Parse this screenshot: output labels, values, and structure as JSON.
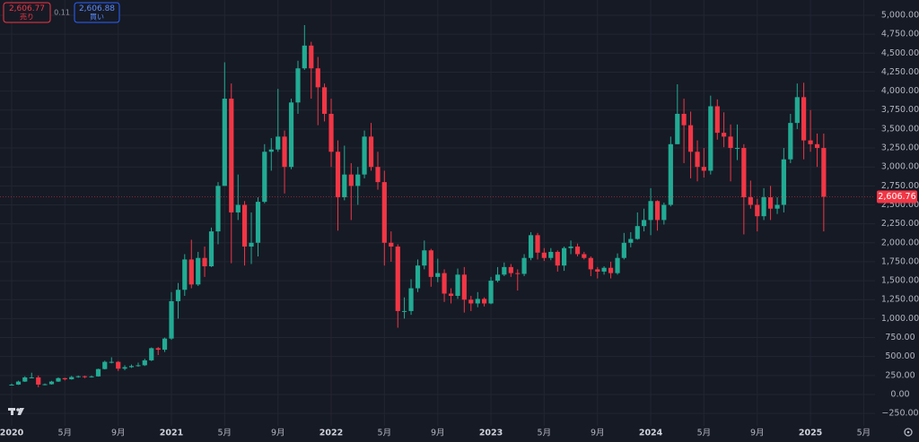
{
  "trade_panel": {
    "sell_price": "2,606.77",
    "sell_label": "売り",
    "spread": "0.11",
    "buy_price": "2,606.88",
    "buy_label": "買い"
  },
  "chart_data": {
    "type": "candlestick",
    "up_color": "#22ab94",
    "down_color": "#f23645",
    "grid": true,
    "last_price": {
      "value": 2606.76,
      "label": "2,606.76"
    },
    "xlim": [
      2019.927,
      2025.404
    ],
    "xticks": [
      2020,
      {
        "value": 2020.333,
        "label": "5月"
      },
      {
        "value": 2020.667,
        "label": "9月"
      },
      2021,
      {
        "value": 2021.333,
        "label": "5月"
      },
      {
        "value": 2021.667,
        "label": "9月"
      },
      2022,
      {
        "value": 2022.333,
        "label": "5月"
      },
      {
        "value": 2022.667,
        "label": "9月"
      },
      2023,
      {
        "value": 2023.333,
        "label": "5月"
      },
      {
        "value": 2023.667,
        "label": "9月"
      },
      2024,
      {
        "value": 2024.333,
        "label": "5月"
      },
      {
        "value": 2024.667,
        "label": "9月"
      },
      2025,
      {
        "value": 2025.333,
        "label": "5月"
      }
    ],
    "ylim": [
      -414,
      5201
    ],
    "yticks": [
      {
        "value": -250,
        "label": "−250.00"
      },
      {
        "value": 0,
        "label": "0.00"
      },
      {
        "value": 250,
        "label": "250.00"
      },
      {
        "value": 500,
        "label": "500.00"
      },
      {
        "value": 750,
        "label": "750.00"
      },
      {
        "value": 1000,
        "label": "1,000.00"
      },
      {
        "value": 1250,
        "label": "1,250.00"
      },
      {
        "value": 1500,
        "label": "1,500.00"
      },
      {
        "value": 1750,
        "label": "1,750.00"
      },
      {
        "value": 2000,
        "label": "2,000.00"
      },
      {
        "value": 2250,
        "label": "2,250.00"
      },
      {
        "value": 2500,
        "label": "2,500.00"
      },
      {
        "value": 2750,
        "label": "2,750.00"
      },
      {
        "value": 3000,
        "label": "3,000.00"
      },
      {
        "value": 3250,
        "label": "3,250.00"
      },
      {
        "value": 3500,
        "label": "3,500.00"
      },
      {
        "value": 3750,
        "label": "3,750.00"
      },
      {
        "value": 4000,
        "label": "4,000.00"
      },
      {
        "value": 4250,
        "label": "4,250.00"
      },
      {
        "value": 4500,
        "label": "4,500.00"
      },
      {
        "value": 4750,
        "label": "4,750.00"
      },
      {
        "value": 5000,
        "label": "5,000.00"
      }
    ],
    "x": [
      2020,
      2020.042,
      2020.083,
      2020.125,
      2020.167,
      2020.208,
      2020.25,
      2020.292,
      2020.333,
      2020.375,
      2020.417,
      2020.458,
      2020.5,
      2020.542,
      2020.583,
      2020.625,
      2020.667,
      2020.708,
      2020.75,
      2020.792,
      2020.833,
      2020.875,
      2020.917,
      2020.958,
      2021,
      2021.042,
      2021.083,
      2021.125,
      2021.167,
      2021.208,
      2021.25,
      2021.292,
      2021.333,
      2021.375,
      2021.417,
      2021.458,
      2021.5,
      2021.542,
      2021.583,
      2021.625,
      2021.667,
      2021.708,
      2021.75,
      2021.792,
      2021.833,
      2021.875,
      2021.917,
      2021.958,
      2022,
      2022.042,
      2022.083,
      2022.125,
      2022.167,
      2022.208,
      2022.25,
      2022.292,
      2022.333,
      2022.375,
      2022.417,
      2022.458,
      2022.5,
      2022.542,
      2022.583,
      2022.625,
      2022.667,
      2022.708,
      2022.75,
      2022.792,
      2022.833,
      2022.875,
      2022.917,
      2022.958,
      2023,
      2023.042,
      2023.083,
      2023.125,
      2023.167,
      2023.208,
      2023.25,
      2023.292,
      2023.333,
      2023.375,
      2023.417,
      2023.458,
      2023.5,
      2023.542,
      2023.583,
      2023.625,
      2023.667,
      2023.708,
      2023.75,
      2023.792,
      2023.833,
      2023.875,
      2023.917,
      2023.958,
      2024,
      2024.042,
      2024.083,
      2024.125,
      2024.167,
      2024.208,
      2024.25,
      2024.292,
      2024.333,
      2024.375,
      2024.417,
      2024.458,
      2024.5,
      2024.542,
      2024.583,
      2024.625,
      2024.667,
      2024.708,
      2024.75,
      2024.792,
      2024.833,
      2024.875,
      2024.917,
      2024.958,
      2025,
      2025.042,
      2025.083
    ],
    "ohlc": [
      [
        129,
        145,
        117,
        130
      ],
      [
        130,
        182,
        126,
        170
      ],
      [
        170,
        240,
        165,
        225
      ],
      [
        225,
        287,
        215,
        225
      ],
      [
        225,
        250,
        95,
        130
      ],
      [
        130,
        145,
        120,
        135
      ],
      [
        135,
        180,
        130,
        170
      ],
      [
        170,
        225,
        165,
        215
      ],
      [
        215,
        220,
        185,
        200
      ],
      [
        200,
        245,
        195,
        230
      ],
      [
        230,
        250,
        220,
        240
      ],
      [
        240,
        248,
        215,
        228
      ],
      [
        228,
        250,
        222,
        238
      ],
      [
        238,
        340,
        235,
        335
      ],
      [
        335,
        445,
        330,
        430
      ],
      [
        430,
        490,
        410,
        430
      ],
      [
        430,
        440,
        310,
        340
      ],
      [
        340,
        385,
        320,
        360
      ],
      [
        360,
        395,
        350,
        375
      ],
      [
        375,
        420,
        365,
        385
      ],
      [
        385,
        470,
        375,
        450
      ],
      [
        450,
        620,
        440,
        610
      ],
      [
        610,
        625,
        520,
        590
      ],
      [
        590,
        750,
        560,
        737
      ],
      [
        737,
        1350,
        720,
        1230
      ],
      [
        1230,
        1470,
        1000,
        1380
      ],
      [
        1380,
        1850,
        1300,
        1780
      ],
      [
        1780,
        2040,
        1400,
        1450
      ],
      [
        1450,
        1880,
        1430,
        1800
      ],
      [
        1800,
        1950,
        1550,
        1690
      ],
      [
        1690,
        2200,
        1680,
        2150
      ],
      [
        2150,
        2800,
        1980,
        2750
      ],
      [
        2750,
        4380,
        2750,
        3900
      ],
      [
        3900,
        4100,
        1730,
        2400
      ],
      [
        2400,
        2900,
        2300,
        2500
      ],
      [
        2500,
        2550,
        1700,
        1950
      ],
      [
        1950,
        2400,
        1720,
        2000
      ],
      [
        2000,
        2600,
        1820,
        2540
      ],
      [
        2540,
        3300,
        2520,
        3200
      ],
      [
        3200,
        3380,
        2950,
        3230
      ],
      [
        3230,
        4030,
        3200,
        3400
      ],
      [
        3400,
        3480,
        2650,
        3000
      ],
      [
        3000,
        3900,
        2970,
        3850
      ],
      [
        3850,
        4400,
        3700,
        4300
      ],
      [
        4300,
        4870,
        4280,
        4600
      ],
      [
        4600,
        4650,
        3900,
        4300
      ],
      [
        4300,
        4450,
        3550,
        4050
      ],
      [
        4050,
        4100,
        3600,
        3700
      ],
      [
        3700,
        3900,
        3000,
        3200
      ],
      [
        3200,
        3350,
        2160,
        2600
      ],
      [
        2600,
        3280,
        2560,
        2900
      ],
      [
        2900,
        3050,
        2300,
        2750
      ],
      [
        2750,
        3000,
        2500,
        2900
      ],
      [
        2900,
        3480,
        2850,
        3400
      ],
      [
        3400,
        3580,
        2950,
        3000
      ],
      [
        3000,
        3200,
        2700,
        2800
      ],
      [
        2800,
        2950,
        1700,
        2000
      ],
      [
        2000,
        2150,
        1750,
        1950
      ],
      [
        1950,
        1980,
        880,
        1100
      ],
      [
        1100,
        1280,
        1000,
        1100
      ],
      [
        1100,
        1520,
        1050,
        1400
      ],
      [
        1400,
        1780,
        1350,
        1700
      ],
      [
        1700,
        2030,
        1650,
        1900
      ],
      [
        1900,
        1920,
        1420,
        1550
      ],
      [
        1550,
        1790,
        1480,
        1600
      ],
      [
        1600,
        1650,
        1220,
        1330
      ],
      [
        1330,
        1400,
        1200,
        1300
      ],
      [
        1300,
        1660,
        1260,
        1580
      ],
      [
        1580,
        1680,
        1080,
        1250
      ],
      [
        1250,
        1300,
        1100,
        1200
      ],
      [
        1200,
        1350,
        1150,
        1260
      ],
      [
        1260,
        1280,
        1160,
        1200
      ],
      [
        1200,
        1550,
        1190,
        1500
      ],
      [
        1500,
        1680,
        1480,
        1580
      ],
      [
        1580,
        1740,
        1560,
        1680
      ],
      [
        1680,
        1720,
        1550,
        1600
      ],
      [
        1600,
        1650,
        1370,
        1590
      ],
      [
        1590,
        1850,
        1560,
        1800
      ],
      [
        1800,
        2140,
        1770,
        2100
      ],
      [
        2100,
        2130,
        1780,
        1870
      ],
      [
        1870,
        1930,
        1760,
        1800
      ],
      [
        1800,
        1930,
        1770,
        1880
      ],
      [
        1880,
        1900,
        1620,
        1700
      ],
      [
        1700,
        1950,
        1630,
        1930
      ],
      [
        1930,
        2030,
        1850,
        1950
      ],
      [
        1950,
        1990,
        1820,
        1850
      ],
      [
        1850,
        1880,
        1780,
        1800
      ],
      [
        1800,
        1820,
        1560,
        1650
      ],
      [
        1650,
        1680,
        1530,
        1620
      ],
      [
        1620,
        1690,
        1580,
        1670
      ],
      [
        1670,
        1750,
        1530,
        1600
      ],
      [
        1600,
        1860,
        1580,
        1800
      ],
      [
        1800,
        2130,
        1780,
        2000
      ],
      [
        2000,
        2140,
        1940,
        2050
      ],
      [
        2050,
        2400,
        2040,
        2220
      ],
      [
        2220,
        2450,
        2150,
        2300
      ],
      [
        2300,
        2720,
        2100,
        2550
      ],
      [
        2550,
        2560,
        2160,
        2300
      ],
      [
        2300,
        2530,
        2240,
        2500
      ],
      [
        2500,
        3400,
        2480,
        3300
      ],
      [
        3300,
        4090,
        3300,
        3700
      ],
      [
        3700,
        3900,
        3050,
        3550
      ],
      [
        3550,
        3730,
        2850,
        3200
      ],
      [
        3200,
        3350,
        2810,
        3000
      ],
      [
        3000,
        3250,
        2860,
        2950
      ],
      [
        2950,
        3940,
        2900,
        3800
      ],
      [
        3800,
        3890,
        3360,
        3450
      ],
      [
        3450,
        3720,
        3260,
        3400
      ],
      [
        3400,
        3560,
        2810,
        3250
      ],
      [
        3250,
        3560,
        3090,
        3250
      ],
      [
        3250,
        3300,
        2110,
        2600
      ],
      [
        2600,
        2820,
        2450,
        2500
      ],
      [
        2500,
        2580,
        2150,
        2350
      ],
      [
        2350,
        2720,
        2300,
        2600
      ],
      [
        2600,
        2750,
        2300,
        2450
      ],
      [
        2450,
        2600,
        2380,
        2500
      ],
      [
        2500,
        3250,
        2400,
        3100
      ],
      [
        3100,
        3700,
        3050,
        3580
      ],
      [
        3580,
        4100,
        3500,
        3920
      ],
      [
        3920,
        4110,
        3100,
        3350
      ],
      [
        3350,
        3750,
        3200,
        3300
      ],
      [
        3300,
        3440,
        3000,
        3250
      ],
      [
        3250,
        3440,
        2150,
        2606.76
      ]
    ]
  }
}
